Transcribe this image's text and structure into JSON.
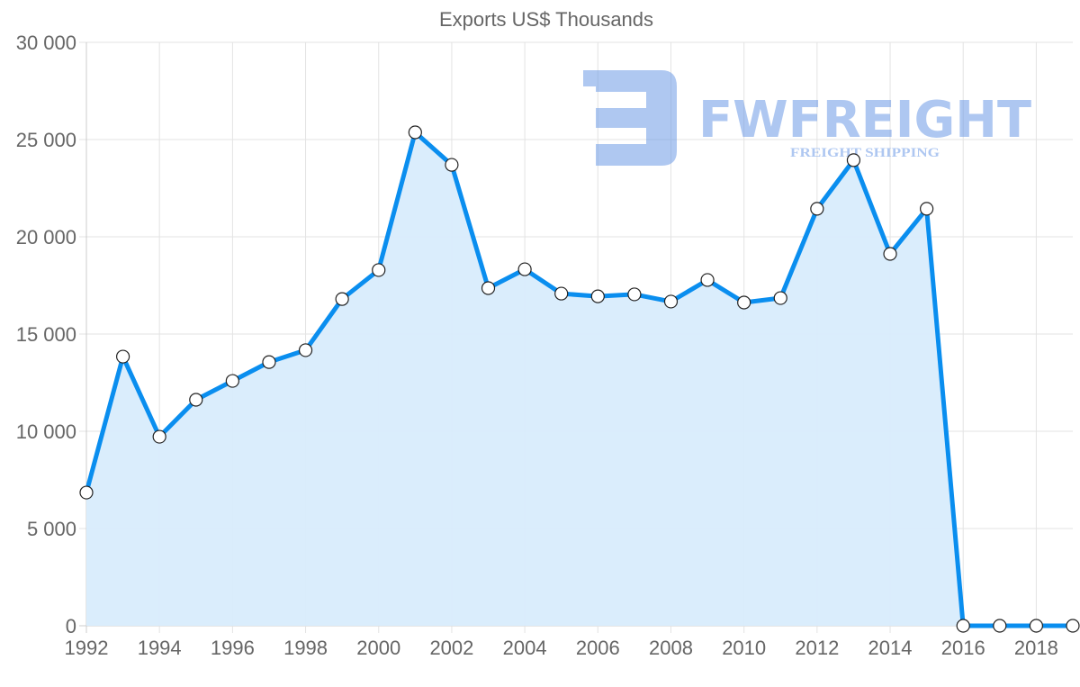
{
  "chart_data": {
    "type": "area",
    "title": "Exports US$ Thousands",
    "xlabel": "",
    "ylabel": "",
    "x": [
      1992,
      1993,
      1994,
      1995,
      1996,
      1997,
      1998,
      1999,
      2000,
      2001,
      2002,
      2003,
      2004,
      2005,
      2006,
      2007,
      2008,
      2009,
      2010,
      2011,
      2012,
      2013,
      2014,
      2015,
      2016,
      2017,
      2018,
      2019
    ],
    "series": [
      {
        "name": "Exports US$ Thousands",
        "values": [
          6850,
          13840,
          9720,
          11620,
          12590,
          13560,
          14170,
          16800,
          18290,
          25370,
          23700,
          17360,
          18330,
          17080,
          16940,
          17040,
          16670,
          17780,
          16620,
          16850,
          21440,
          23940,
          19120,
          21440,
          0,
          0,
          0,
          0
        ],
        "color": "#0a8eef",
        "fill": "#d8ecfc"
      }
    ],
    "x_tick_labels": [
      "1992",
      "1994",
      "1996",
      "1998",
      "2000",
      "2002",
      "2004",
      "2006",
      "2008",
      "2010",
      "2012",
      "2014",
      "2016",
      "2018"
    ],
    "y_tick_labels": [
      "0",
      "5 000",
      "10 000",
      "15 000",
      "20 000",
      "25 000",
      "30 000"
    ],
    "y_ticks": [
      0,
      5000,
      10000,
      15000,
      20000,
      25000,
      30000
    ],
    "ylim": [
      0,
      30000
    ],
    "xlim": [
      1992,
      2019
    ],
    "grid": true,
    "legend": "none"
  },
  "watermark": {
    "brand": "FWFREIGHT",
    "tagline": "FREIGHT SHIPPING",
    "color": "#6d9ae6"
  }
}
